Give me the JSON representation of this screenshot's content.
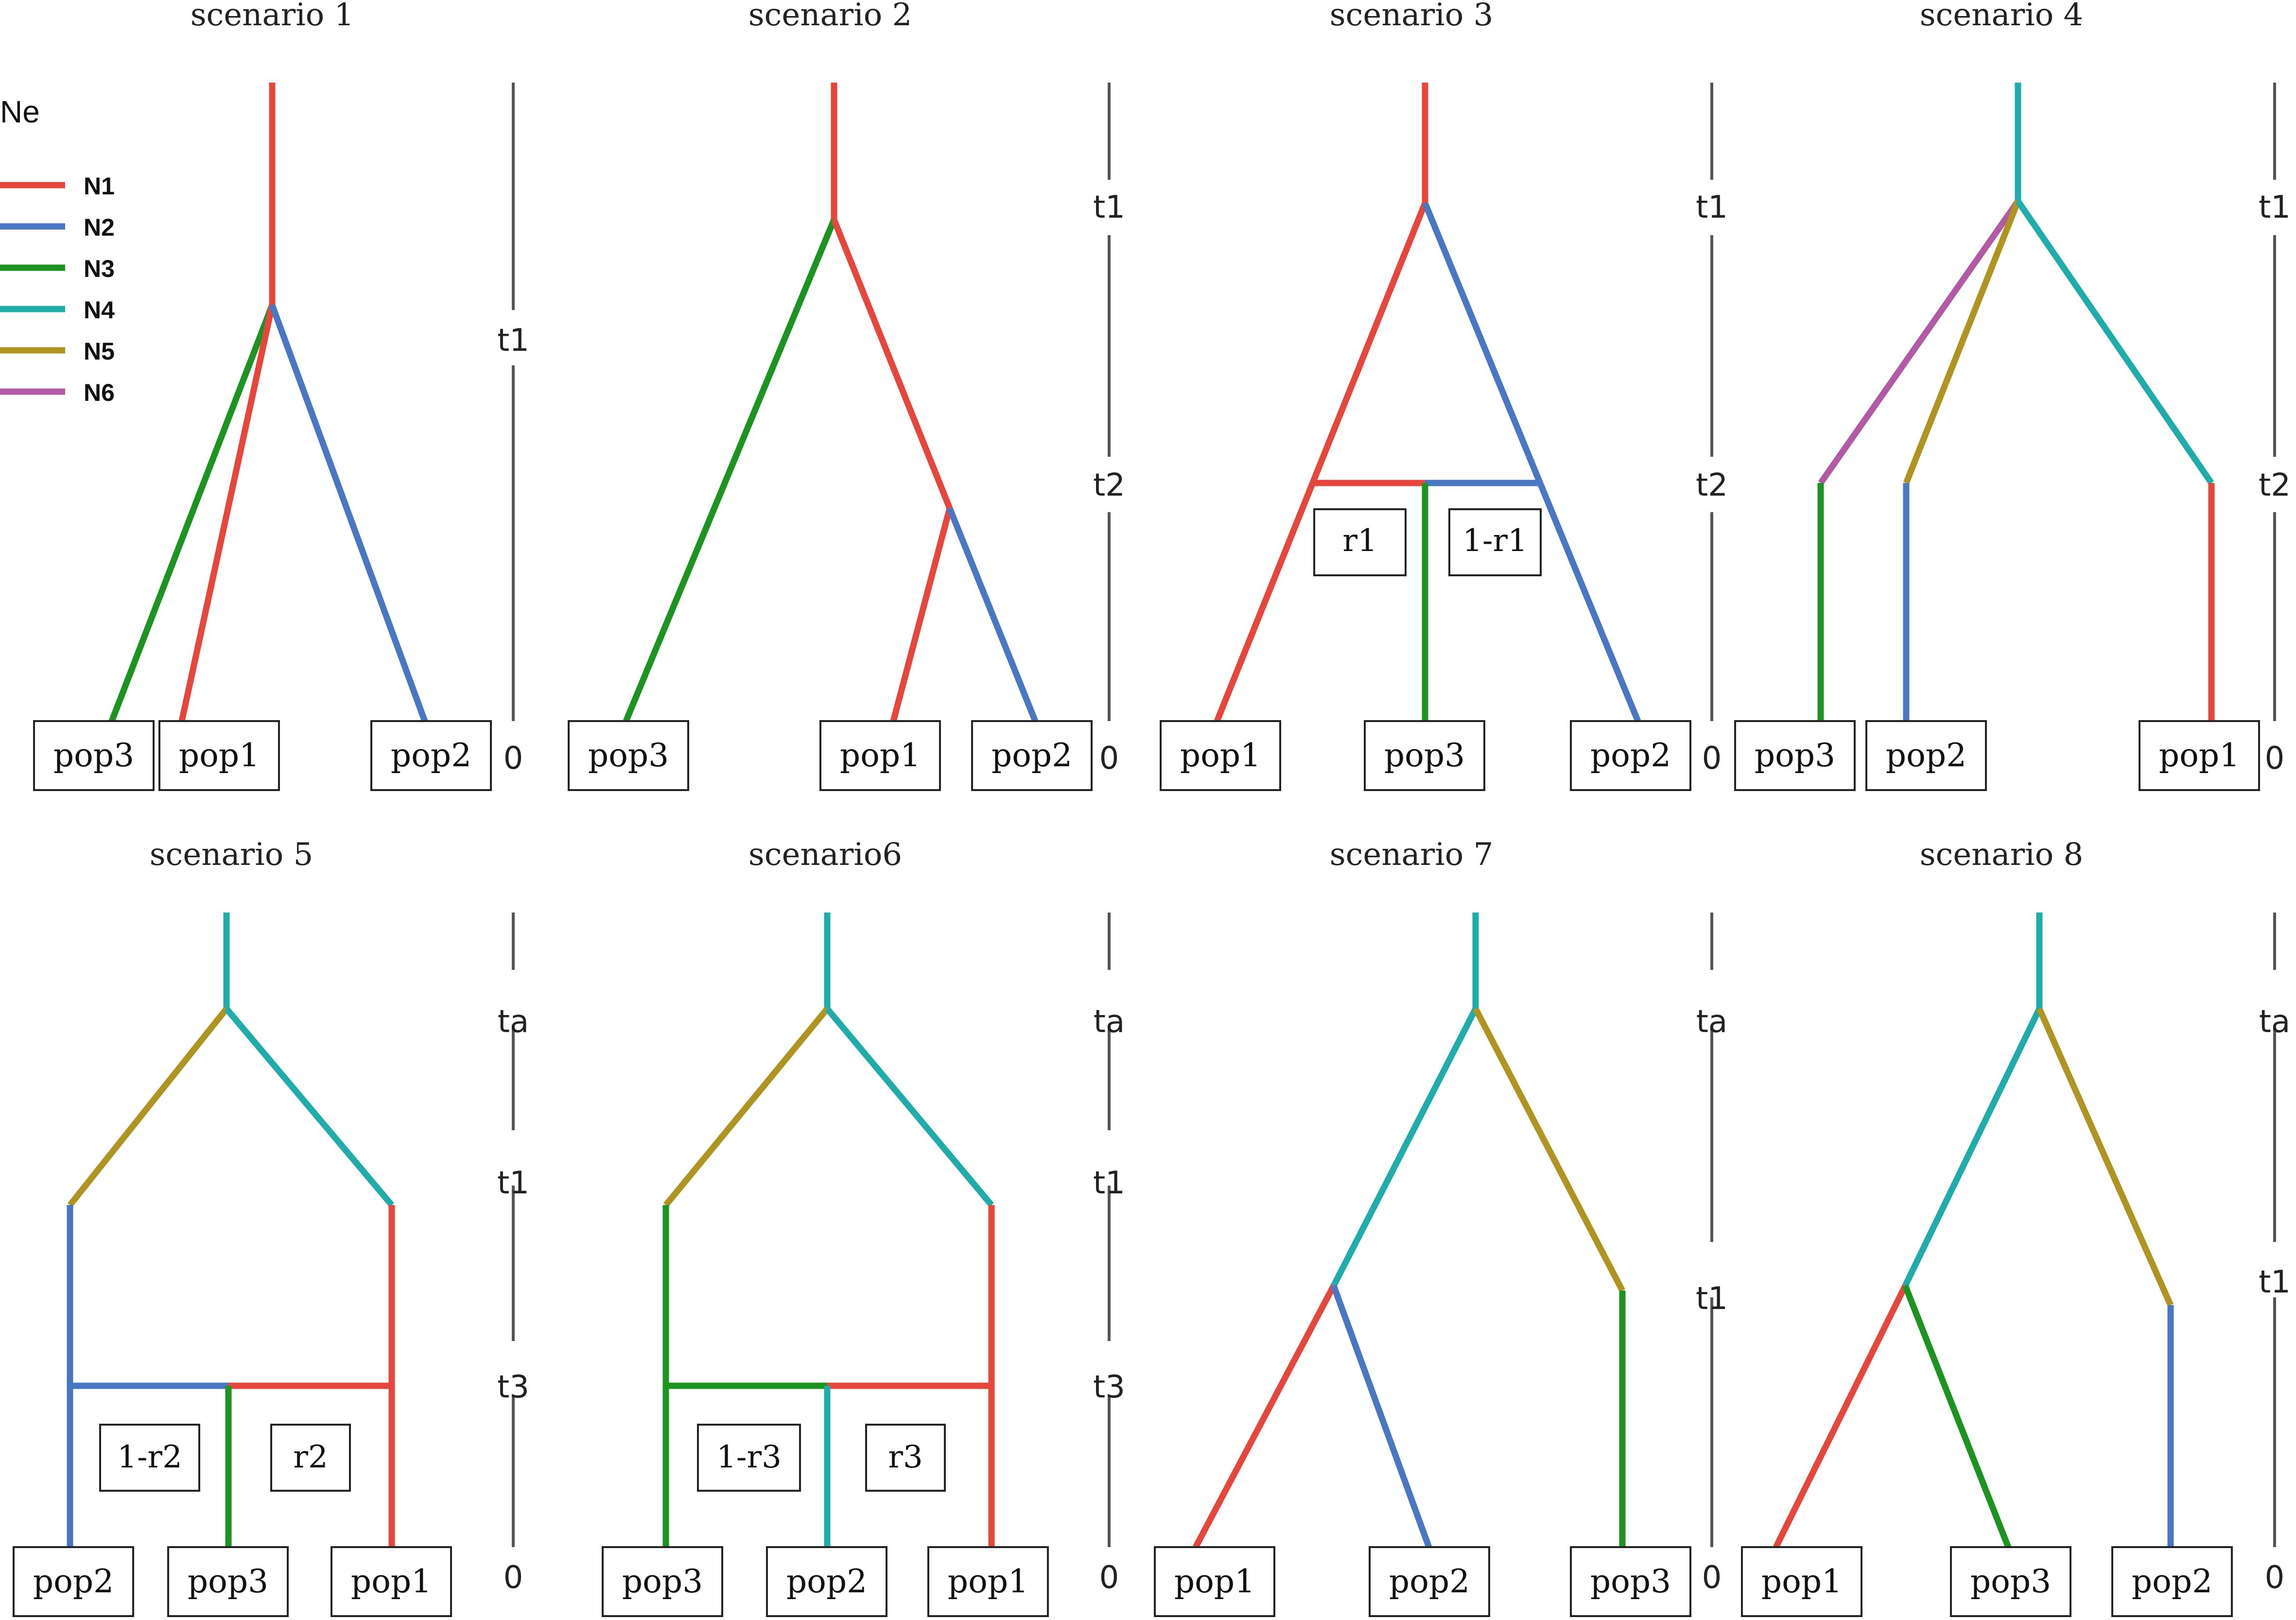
{
  "colors": {
    "N1": "#e5473c",
    "N2": "#4a77c3",
    "N3": "#1d9421",
    "N4": "#20acaa",
    "N5": "#b09422",
    "N6": "#b25aa6"
  },
  "legend": {
    "title": "Ne",
    "items": [
      {
        "key": "N1",
        "label": "N1"
      },
      {
        "key": "N2",
        "label": "N2"
      },
      {
        "key": "N3",
        "label": "N3"
      },
      {
        "key": "N4",
        "label": "N4"
      },
      {
        "key": "N5",
        "label": "N5"
      },
      {
        "key": "N6",
        "label": "N6"
      }
    ]
  },
  "scenarios": [
    {
      "title": "scenario 1",
      "time_labels": [
        "t1",
        "0"
      ],
      "populations": [
        "pop3",
        "pop1",
        "pop2"
      ],
      "branches": [
        {
          "from": "root",
          "to": "t1 split",
          "Ne": "N1"
        },
        {
          "from": "t1 split",
          "to": "pop3",
          "Ne": "N3"
        },
        {
          "from": "t1 split",
          "to": "pop1",
          "Ne": "N1"
        },
        {
          "from": "t1 split",
          "to": "pop2",
          "Ne": "N2"
        }
      ],
      "ratios": []
    },
    {
      "title": "scenario 2",
      "time_labels": [
        "t1",
        "t2",
        "0"
      ],
      "populations": [
        "pop3",
        "pop1",
        "pop2"
      ],
      "branches": [
        {
          "from": "root",
          "to": "t1 split",
          "Ne": "N1"
        },
        {
          "from": "t1 split",
          "to": "pop3",
          "Ne": "N3"
        },
        {
          "from": "t1 split",
          "to": "t2 split",
          "Ne": "N1"
        },
        {
          "from": "t2 split",
          "to": "pop1",
          "Ne": "N1"
        },
        {
          "from": "t2 split",
          "to": "pop2",
          "Ne": "N2"
        }
      ],
      "ratios": []
    },
    {
      "title": "scenario 3",
      "time_labels": [
        "t1",
        "t2",
        "0"
      ],
      "populations": [
        "pop1",
        "pop3",
        "pop2"
      ],
      "branches": [
        {
          "from": "root",
          "to": "t1 split",
          "Ne": "N1"
        },
        {
          "from": "t1 split",
          "to": "pop1",
          "Ne": "N1"
        },
        {
          "from": "t1 split",
          "to": "pop2",
          "Ne": "N2"
        },
        {
          "from": "admixture t2",
          "to": "pop3",
          "Ne": "N3"
        }
      ],
      "ratios": [
        "r1",
        "1-r1"
      ]
    },
    {
      "title": "scenario 4",
      "time_labels": [
        "t1",
        "t2",
        "0"
      ],
      "populations": [
        "pop3",
        "pop2",
        "pop1"
      ],
      "branches": [
        {
          "from": "root",
          "to": "t1 split",
          "Ne": "N4"
        },
        {
          "from": "t1 split",
          "to": "t2 (pop3 line)",
          "Ne": "N6"
        },
        {
          "from": "t1 split",
          "to": "t2 (pop2 line)",
          "Ne": "N5"
        },
        {
          "from": "t1 split",
          "to": "t2 (pop1 line)",
          "Ne": "N4"
        },
        {
          "from": "t2",
          "to": "pop3",
          "Ne": "N3"
        },
        {
          "from": "t2",
          "to": "pop2",
          "Ne": "N2"
        },
        {
          "from": "t2",
          "to": "pop1",
          "Ne": "N1"
        }
      ],
      "ratios": []
    },
    {
      "title": "scenario 5",
      "time_labels": [
        "ta",
        "t1",
        "t3",
        "0"
      ],
      "populations": [
        "pop2",
        "pop3",
        "pop1"
      ],
      "branches": [
        {
          "from": "root",
          "to": "ta split",
          "Ne": "N4"
        },
        {
          "from": "ta split",
          "to": "t1 (left)",
          "Ne": "N5"
        },
        {
          "from": "ta split",
          "to": "t1 (right)",
          "Ne": "N4"
        },
        {
          "from": "t1 (left)",
          "to": "pop2",
          "Ne": "N2"
        },
        {
          "from": "t1 (right)",
          "to": "pop1",
          "Ne": "N1"
        },
        {
          "from": "admixture t3",
          "to": "pop3",
          "Ne": "N3"
        }
      ],
      "ratios": [
        "1-r2",
        "r2"
      ]
    },
    {
      "title": "scenario6",
      "time_labels": [
        "ta",
        "t1",
        "t3",
        "0"
      ],
      "populations": [
        "pop3",
        "pop2",
        "pop1"
      ],
      "branches": [
        {
          "from": "root",
          "to": "ta split",
          "Ne": "N4"
        },
        {
          "from": "ta split",
          "to": "t1 (left)",
          "Ne": "N5"
        },
        {
          "from": "ta split",
          "to": "t1 (right)",
          "Ne": "N4"
        },
        {
          "from": "t1 (left)",
          "to": "pop3",
          "Ne": "N3"
        },
        {
          "from": "t1 (right)",
          "to": "pop1",
          "Ne": "N1"
        },
        {
          "from": "admixture t3",
          "to": "pop2",
          "Ne": "N4"
        }
      ],
      "ratios": [
        "1-r3",
        "r3"
      ]
    },
    {
      "title": "scenario 7",
      "time_labels": [
        "ta",
        "t1",
        "0"
      ],
      "populations": [
        "pop1",
        "pop2",
        "pop3"
      ],
      "branches": [
        {
          "from": "root",
          "to": "ta split",
          "Ne": "N4"
        },
        {
          "from": "ta split",
          "to": "t1 split",
          "Ne": "N4"
        },
        {
          "from": "ta split",
          "to": "t1 (right)",
          "Ne": "N5"
        },
        {
          "from": "t1 split",
          "to": "pop1",
          "Ne": "N1"
        },
        {
          "from": "t1 split",
          "to": "pop2",
          "Ne": "N2"
        },
        {
          "from": "t1 (right)",
          "to": "pop3",
          "Ne": "N3"
        }
      ],
      "ratios": []
    },
    {
      "title": "scenario 8",
      "time_labels": [
        "ta",
        "t1",
        "0"
      ],
      "populations": [
        "pop1",
        "pop3",
        "pop2"
      ],
      "branches": [
        {
          "from": "root",
          "to": "ta split",
          "Ne": "N4"
        },
        {
          "from": "ta split",
          "to": "t1 split",
          "Ne": "N4"
        },
        {
          "from": "ta split",
          "to": "t1 (right)",
          "Ne": "N5"
        },
        {
          "from": "t1 split",
          "to": "pop1",
          "Ne": "N1"
        },
        {
          "from": "t1 split",
          "to": "pop3",
          "Ne": "N3"
        },
        {
          "from": "t1 (right)",
          "to": "pop2",
          "Ne": "N2"
        }
      ],
      "ratios": []
    }
  ]
}
